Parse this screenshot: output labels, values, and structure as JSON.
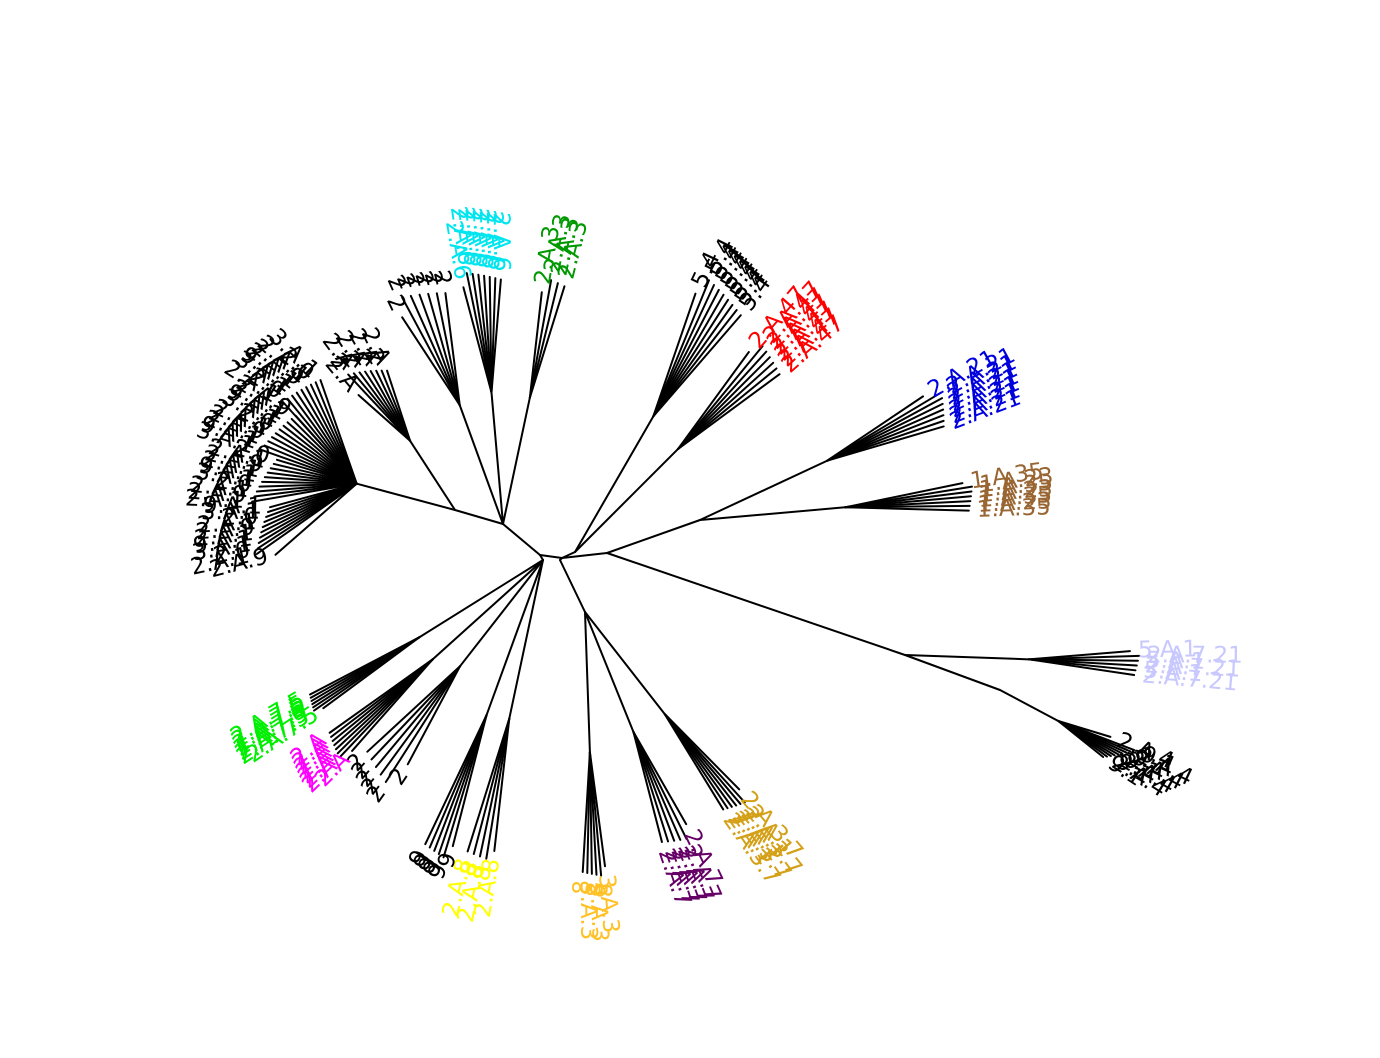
{
  "diagram": {
    "type": "unrooted-phylogenetic-tree",
    "branch_color": "#000000",
    "clades": [
      {
        "id": "black-left-large",
        "color": "#000000",
        "tips": 40,
        "labels": [
          "2.A.9",
          "2.A.1",
          "2.0",
          "3.A.1",
          "9.A.1",
          "2.A.1"
        ]
      },
      {
        "id": "black-upper-left",
        "color": "#000000",
        "tips": 9,
        "labels": [
          "2.A",
          "2"
        ]
      },
      {
        "id": "black-top",
        "color": "#000000",
        "tips": 7,
        "labels": [
          "2"
        ]
      },
      {
        "id": "cyan",
        "color": "#00e5ee",
        "tips": 8,
        "labels": [
          "2.A.6"
        ]
      },
      {
        "id": "green-dark",
        "color": "#009900",
        "tips": 4,
        "labels": [
          "2.A.3"
        ]
      },
      {
        "id": "black-upper-right",
        "color": "#000000",
        "tips": 9,
        "labels": [
          "5.4"
        ]
      },
      {
        "id": "red",
        "color": "#ff0000",
        "tips": 7,
        "labels": [
          "2.A.47"
        ]
      },
      {
        "id": "blue",
        "color": "#0000dd",
        "tips": 8,
        "labels": [
          "2.A.21"
        ]
      },
      {
        "id": "brown",
        "color": "#996633",
        "tips": 7,
        "labels": [
          "1.A.35",
          "1.A.23"
        ]
      },
      {
        "id": "lavender",
        "color": "#c8c8ff",
        "tips": 6,
        "labels": [
          "5.A.1",
          "2.A.7.21"
        ]
      },
      {
        "id": "black-lower-right",
        "color": "#000000",
        "tips": 10,
        "labels": [
          "2.A.4",
          "9.1"
        ]
      },
      {
        "id": "gold",
        "color": "#d4a017",
        "tips": 7,
        "labels": [
          "2.A.3.7",
          "2.A.1"
        ]
      },
      {
        "id": "purple",
        "color": "#660066",
        "tips": 6,
        "labels": [
          "2.A.7"
        ]
      },
      {
        "id": "amber",
        "color": "#ffc125",
        "tips": 6,
        "labels": [
          "3.A.3",
          "8"
        ]
      },
      {
        "id": "yellow",
        "color": "#ffff00",
        "tips": 5,
        "labels": [
          "2.A.8",
          "8"
        ]
      },
      {
        "id": "black-bottom",
        "color": "#000000",
        "tips": 6,
        "labels": [
          "9"
        ]
      },
      {
        "id": "magenta",
        "color": "#ff00ff",
        "tips": 8,
        "labels": [
          "2.A"
        ]
      },
      {
        "id": "black-lower-left",
        "color": "#000000",
        "tips": 6,
        "labels": [
          "2"
        ]
      },
      {
        "id": "green-bright",
        "color": "#00ee00",
        "tips": 7,
        "labels": [
          "2.A.7.5"
        ]
      }
    ]
  }
}
